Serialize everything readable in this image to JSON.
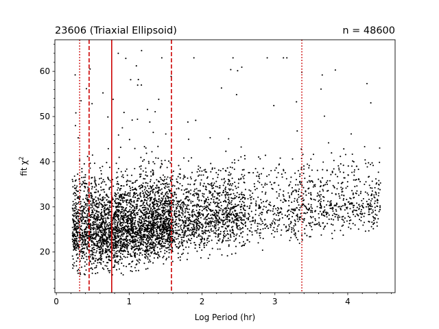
{
  "chart_data": {
    "type": "scatter",
    "title_left": "23606 (Triaxial Ellipsoid)",
    "title_right": "n = 48600",
    "xlabel": "Log Period (hr)",
    "ylabel_main": "fit χ",
    "ylabel_sup": "2",
    "xlim": [
      -0.02,
      4.65
    ],
    "ylim": [
      11,
      67
    ],
    "xticks": [
      0,
      1,
      2,
      3,
      4
    ],
    "xtick_labels": [
      "0",
      "1",
      "2",
      "3",
      "4"
    ],
    "yticks": [
      20,
      30,
      40,
      50,
      60
    ],
    "ytick_labels": [
      "20",
      "30",
      "40",
      "50",
      "60"
    ],
    "x_minor_step": 0.2,
    "y_minor_step": 2,
    "grid": false,
    "point_color": "#000000",
    "marker": "dot",
    "n_points": 48600,
    "reference_lines": [
      {
        "x": 0.32,
        "style": "dotted",
        "color": "#cc0000"
      },
      {
        "x": 0.45,
        "style": "dashed",
        "color": "#cc0000"
      },
      {
        "x": 0.76,
        "style": "solid",
        "color": "#cc0000"
      },
      {
        "x": 1.58,
        "style": "dashed",
        "color": "#cc0000"
      },
      {
        "x": 3.37,
        "style": "dotted",
        "color": "#cc0000"
      }
    ],
    "distribution": {
      "x_range": [
        0.2,
        4.45
      ],
      "y_floor_at_x": [
        [
          0.25,
          15.0
        ],
        [
          0.8,
          14.5
        ],
        [
          1.6,
          17.5
        ],
        [
          2.5,
          19.5
        ],
        [
          3.5,
          22.0
        ],
        [
          4.4,
          24.0
        ]
      ],
      "y_center_at_x": [
        [
          0.3,
          25.5
        ],
        [
          1.0,
          25.5
        ],
        [
          2.0,
          28.0
        ],
        [
          3.0,
          29.5
        ],
        [
          4.2,
          31.0
        ]
      ],
      "notable_outliers": [
        {
          "x": 0.85,
          "y": 64.0
        },
        {
          "x": 1.17,
          "y": 64.6
        },
        {
          "x": 3.37,
          "y": 59.8
        },
        {
          "x": 3.83,
          "y": 60.3
        },
        {
          "x": 3.65,
          "y": 59.2
        }
      ]
    }
  }
}
